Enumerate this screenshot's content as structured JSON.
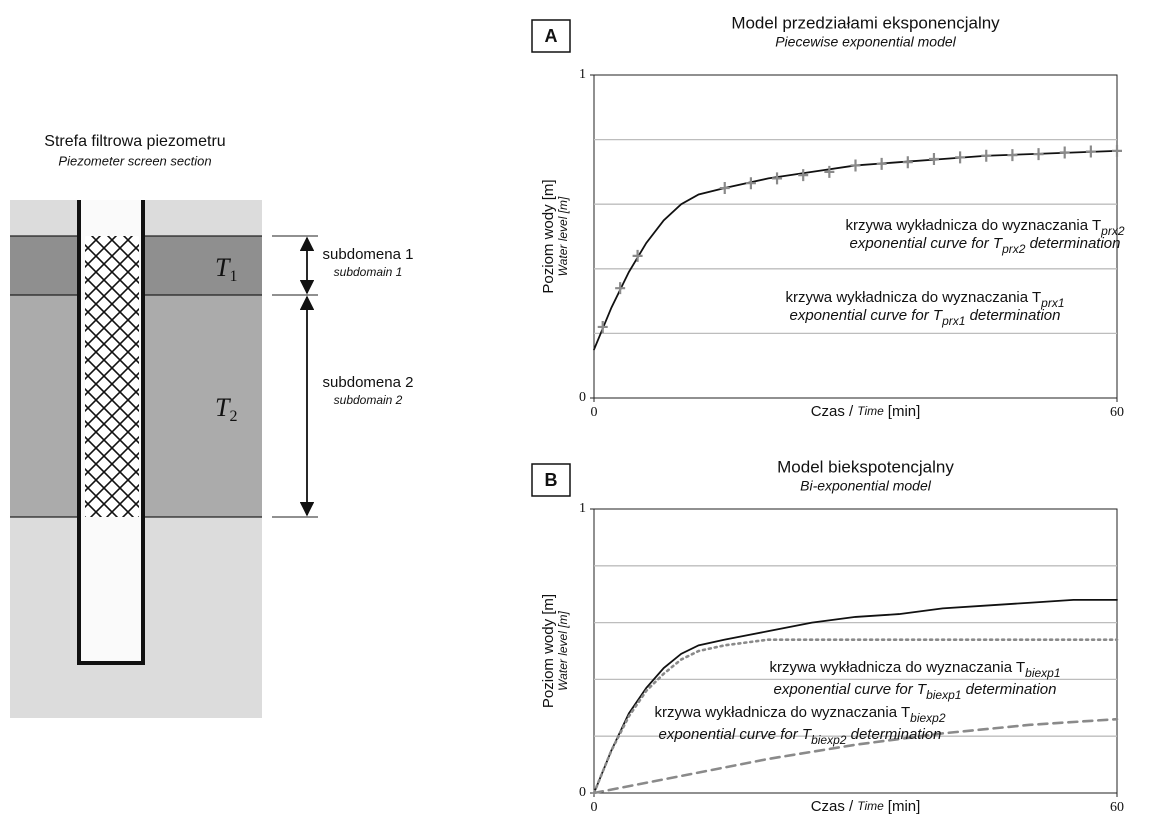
{
  "diagram": {
    "title": "Strefa filtrowa piezometru",
    "subtitle": "Piezometer screen section",
    "layers": [
      {
        "symbol": "T",
        "sub": "1",
        "label": "subdomena 1",
        "label_en": "subdomain 1"
      },
      {
        "symbol": "T",
        "sub": "2",
        "label": "subdomena 2",
        "label_en": "subdomain 2"
      }
    ]
  },
  "chart_data": [
    {
      "type": "line",
      "panel": "A",
      "title": "Model przedziałami eksponencjalny",
      "subtitle": "Piecewise exponential model",
      "y_label": "Poziom wody [m]",
      "y_label_en": "Water level [m]",
      "x_label": "Czas /",
      "x_label_en": "Time",
      "x_label_unit": "[min]",
      "xlim": [
        0,
        60
      ],
      "xticks": [
        0,
        60
      ],
      "ylim": [
        0,
        1
      ],
      "yticks": [
        0,
        1
      ],
      "grid_y": [
        0.2,
        0.4,
        0.6,
        0.8
      ],
      "series": [
        {
          "style": "solid",
          "color": "#111111",
          "x": [
            0,
            2,
            4,
            6,
            8,
            10,
            12,
            15,
            20,
            25,
            30,
            35,
            40,
            45,
            50,
            55,
            60
          ],
          "values": [
            0.15,
            0.28,
            0.39,
            0.48,
            0.55,
            0.6,
            0.63,
            0.65,
            0.68,
            0.7,
            0.72,
            0.73,
            0.74,
            0.75,
            0.755,
            0.76,
            0.765
          ]
        },
        {
          "style": "markers",
          "color": "#8a8a8a",
          "x": [
            1,
            3,
            5,
            15,
            18,
            21,
            24,
            27,
            30,
            33,
            36,
            39,
            42,
            45,
            48,
            51,
            54,
            57,
            60
          ],
          "values": [
            0.22,
            0.34,
            0.44,
            0.65,
            0.665,
            0.68,
            0.69,
            0.7,
            0.72,
            0.725,
            0.73,
            0.74,
            0.745,
            0.75,
            0.752,
            0.755,
            0.76,
            0.763,
            0.765
          ]
        }
      ],
      "annotations": [
        {
          "pl": "krzywa wykładnicza do wyznaczania T",
          "pl_sub": "prx2",
          "en": "exponential curve for T",
          "en_sub": "prx2",
          "en_after": " determination"
        },
        {
          "pl": "krzywa wykładnicza do wyznaczania T",
          "pl_sub": "prx1",
          "en": "exponential curve for T",
          "en_sub": "prx1",
          "en_after": " determination"
        }
      ]
    },
    {
      "type": "line",
      "panel": "B",
      "title": "Model biekspotencjalny",
      "subtitle": "Bi-exponential model",
      "y_label": "Poziom wody [m]",
      "y_label_en": "Water level [m]",
      "x_label": "Czas /",
      "x_label_en": "Time",
      "x_label_unit": "[min]",
      "xlim": [
        0,
        60
      ],
      "xticks": [
        0,
        60
      ],
      "ylim": [
        0,
        1
      ],
      "yticks": [
        0,
        1
      ],
      "grid_y": [
        0.2,
        0.4,
        0.6,
        0.8
      ],
      "series": [
        {
          "style": "solid",
          "color": "#111111",
          "x": [
            0,
            2,
            4,
            6,
            8,
            10,
            12,
            15,
            20,
            25,
            30,
            35,
            40,
            45,
            50,
            55,
            60
          ],
          "values": [
            0,
            0.15,
            0.28,
            0.37,
            0.44,
            0.49,
            0.52,
            0.54,
            0.57,
            0.6,
            0.62,
            0.63,
            0.65,
            0.66,
            0.67,
            0.68,
            0.68
          ]
        },
        {
          "style": "dotted",
          "color": "#8a8a8a",
          "x": [
            0,
            2,
            4,
            6,
            8,
            10,
            12,
            15,
            20,
            25,
            30,
            40,
            50,
            60
          ],
          "values": [
            0,
            0.15,
            0.27,
            0.36,
            0.42,
            0.47,
            0.5,
            0.52,
            0.54,
            0.54,
            0.54,
            0.54,
            0.54,
            0.54
          ]
        },
        {
          "style": "dashed",
          "color": "#8a8a8a",
          "x": [
            0,
            5,
            10,
            15,
            20,
            30,
            40,
            50,
            60
          ],
          "values": [
            0,
            0.03,
            0.06,
            0.09,
            0.12,
            0.17,
            0.21,
            0.24,
            0.26
          ]
        }
      ],
      "annotations": [
        {
          "pl": "krzywa wykładnicza do wyznaczania T",
          "pl_sub": "biexp1",
          "en": "exponential curve for T",
          "en_sub": "biexp1",
          "en_after": " determination"
        },
        {
          "pl": "krzywa wykładnicza do wyznaczania T",
          "pl_sub": "biexp2",
          "en": "exponential curve for T",
          "en_sub": "biexp2",
          "en_after": " determination"
        }
      ]
    }
  ]
}
